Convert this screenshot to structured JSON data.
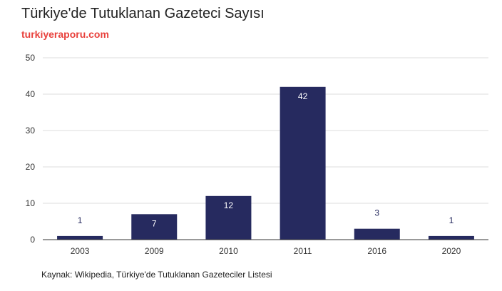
{
  "title": "Türkiye'de Tutuklanan Gazeteci Sayısı",
  "subtitle": "turkiyeraporu.com",
  "source": "Kaynak: Wikipedia, Türkiye'de Tutuklanan Gazeteciler Listesi",
  "colors": {
    "bar": "#262a5f",
    "label_inside": "#ffffff",
    "label_outside": "#262a5f",
    "subtitle": "#e8413c",
    "grid": "#dddddd"
  },
  "chart_data": {
    "type": "bar",
    "title": "Türkiye'de Tutuklanan Gazeteci Sayısı",
    "xlabel": "",
    "ylabel": "",
    "categories": [
      "2003",
      "2009",
      "2010",
      "2011",
      "2016",
      "2020"
    ],
    "values": [
      1,
      7,
      12,
      42,
      3,
      1
    ],
    "ylim": [
      0,
      50
    ],
    "yticks": [
      0,
      10,
      20,
      30,
      40,
      50
    ],
    "grid": true,
    "data_labels": true
  }
}
